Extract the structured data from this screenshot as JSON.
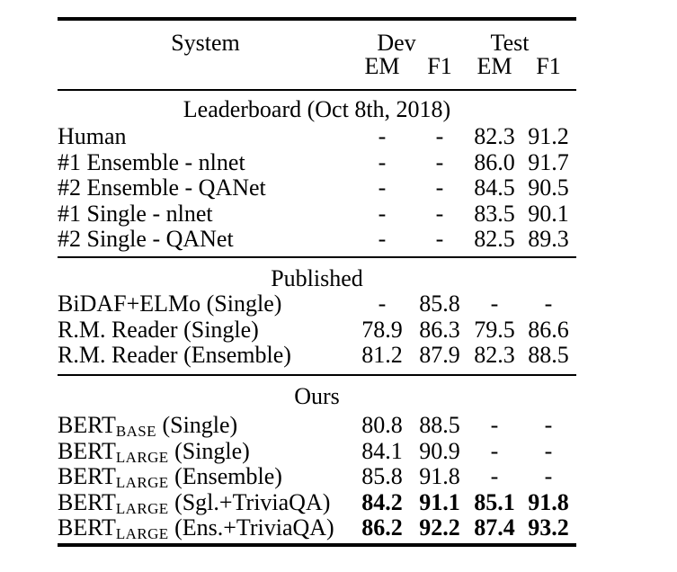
{
  "table": {
    "headers": {
      "system": "System",
      "dev": "Dev",
      "test": "Test",
      "em": "EM",
      "f1": "F1"
    },
    "sections": [
      {
        "title": "Leaderboard (Oct 8th, 2018)",
        "rows": [
          {
            "name": {
              "pre": "Human",
              "sub": "",
              "post": ""
            },
            "values": [
              "-",
              "-",
              "82.3",
              "91.2"
            ],
            "bold_values": false
          },
          {
            "name": {
              "pre": "#1 Ensemble - nlnet",
              "sub": "",
              "post": ""
            },
            "values": [
              "-",
              "-",
              "86.0",
              "91.7"
            ],
            "bold_values": false
          },
          {
            "name": {
              "pre": "#2 Ensemble - QANet",
              "sub": "",
              "post": ""
            },
            "values": [
              "-",
              "-",
              "84.5",
              "90.5"
            ],
            "bold_values": false
          },
          {
            "name": {
              "pre": "#1 Single - nlnet",
              "sub": "",
              "post": ""
            },
            "values": [
              "-",
              "-",
              "83.5",
              "90.1"
            ],
            "bold_values": false
          },
          {
            "name": {
              "pre": "#2 Single - QANet",
              "sub": "",
              "post": ""
            },
            "values": [
              "-",
              "-",
              "82.5",
              "89.3"
            ],
            "bold_values": false
          }
        ]
      },
      {
        "title": "Published",
        "rows": [
          {
            "name": {
              "pre": "BiDAF+ELMo (Single)",
              "sub": "",
              "post": ""
            },
            "values": [
              "-",
              "85.8",
              "-",
              "-"
            ],
            "bold_values": false
          },
          {
            "name": {
              "pre": "R.M. Reader (Single)",
              "sub": "",
              "post": ""
            },
            "values": [
              "78.9",
              "86.3",
              "79.5",
              "86.6"
            ],
            "bold_values": false
          },
          {
            "name": {
              "pre": "R.M. Reader (Ensemble)",
              "sub": "",
              "post": ""
            },
            "values": [
              "81.2",
              "87.9",
              "82.3",
              "88.5"
            ],
            "bold_values": false
          }
        ]
      },
      {
        "title": "Ours",
        "rows": [
          {
            "name": {
              "pre": "BERT",
              "sub": "BASE",
              "post": " (Single)"
            },
            "values": [
              "80.8",
              "88.5",
              "-",
              "-"
            ],
            "bold_values": false
          },
          {
            "name": {
              "pre": "BERT",
              "sub": "LARGE",
              "post": " (Single)"
            },
            "values": [
              "84.1",
              "90.9",
              "-",
              "-"
            ],
            "bold_values": false
          },
          {
            "name": {
              "pre": "BERT",
              "sub": "LARGE",
              "post": " (Ensemble)"
            },
            "values": [
              "85.8",
              "91.8",
              "-",
              "-"
            ],
            "bold_values": false
          },
          {
            "name": {
              "pre": "BERT",
              "sub": "LARGE",
              "post": " (Sgl.+TriviaQA)"
            },
            "values": [
              "84.2",
              "91.1",
              "85.1",
              "91.8"
            ],
            "bold_values": true
          },
          {
            "name": {
              "pre": "BERT",
              "sub": "LARGE",
              "post": " (Ens.+TriviaQA)"
            },
            "values": [
              "86.2",
              "92.2",
              "87.4",
              "93.2"
            ],
            "bold_values": true
          }
        ]
      }
    ],
    "colors": {
      "text": "#000000",
      "background": "#ffffff",
      "rule": "#000000"
    }
  }
}
